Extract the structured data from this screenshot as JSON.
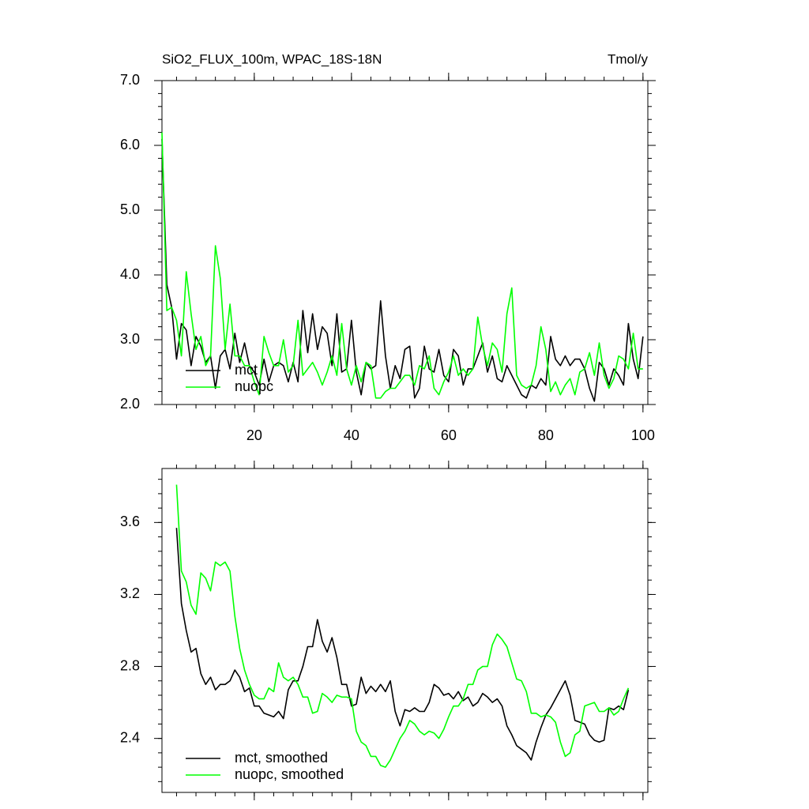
{
  "chart_data": [
    {
      "type": "line",
      "title": "SiO2_FLUX_100m, WPAC_18S-18N",
      "units_label": "Tmol/y",
      "x": [
        1,
        2,
        3,
        4,
        5,
        6,
        7,
        8,
        9,
        10,
        11,
        12,
        13,
        14,
        15,
        16,
        17,
        18,
        19,
        20,
        21,
        22,
        23,
        24,
        25,
        26,
        27,
        28,
        29,
        30,
        31,
        32,
        33,
        34,
        35,
        36,
        37,
        38,
        39,
        40,
        41,
        42,
        43,
        44,
        45,
        46,
        47,
        48,
        49,
        50,
        51,
        52,
        53,
        54,
        55,
        56,
        57,
        58,
        59,
        60,
        61,
        62,
        63,
        64,
        65,
        66,
        67,
        68,
        69,
        70,
        71,
        72,
        73,
        74,
        75,
        76,
        77,
        78,
        79,
        80,
        81,
        82,
        83,
        84,
        85,
        86,
        87,
        88,
        89,
        90,
        91,
        92,
        93,
        94,
        95,
        96,
        97,
        98,
        99,
        100
      ],
      "series": [
        {
          "name": "mct",
          "color": "#000000",
          "values": [
            6.1,
            3.85,
            3.5,
            2.7,
            3.25,
            3.15,
            2.6,
            3.05,
            2.9,
            2.65,
            2.75,
            2.25,
            2.75,
            2.85,
            2.55,
            3.1,
            2.65,
            2.95,
            2.6,
            2.5,
            2.3,
            2.7,
            2.35,
            2.6,
            2.65,
            2.6,
            2.35,
            2.65,
            2.35,
            3.45,
            2.8,
            3.4,
            2.85,
            3.2,
            3.1,
            2.6,
            3.4,
            2.5,
            2.55,
            3.3,
            2.5,
            2.15,
            2.65,
            2.55,
            2.6,
            3.6,
            2.75,
            2.25,
            2.6,
            2.4,
            2.85,
            2.9,
            2.1,
            2.25,
            2.9,
            2.55,
            2.5,
            2.85,
            2.45,
            2.35,
            2.85,
            2.75,
            2.3,
            2.55,
            2.55,
            2.75,
            2.95,
            2.5,
            2.75,
            2.4,
            2.35,
            2.6,
            2.45,
            2.3,
            2.15,
            2.1,
            2.3,
            2.25,
            2.4,
            2.3,
            3.05,
            2.7,
            2.6,
            2.75,
            2.6,
            2.7,
            2.7,
            2.55,
            2.25,
            2.05,
            2.65,
            2.55,
            2.3,
            2.55,
            2.45,
            2.3,
            3.25,
            2.7,
            2.4,
            3.05
          ]
        },
        {
          "name": "nuopc",
          "color": "#00ff00",
          "values": [
            6.2,
            3.45,
            3.5,
            3.3,
            2.75,
            4.05,
            3.4,
            2.85,
            3.05,
            2.6,
            2.75,
            4.45,
            3.95,
            2.85,
            3.55,
            2.75,
            2.75,
            2.6,
            2.6,
            2.35,
            2.15,
            3.05,
            2.8,
            2.6,
            2.6,
            3.0,
            2.5,
            2.6,
            3.3,
            2.45,
            2.55,
            2.65,
            2.5,
            2.3,
            2.5,
            2.75,
            2.45,
            3.25,
            2.55,
            2.3,
            2.6,
            2.35,
            2.65,
            2.6,
            2.1,
            2.1,
            2.2,
            2.25,
            2.25,
            2.35,
            2.45,
            2.45,
            2.3,
            2.6,
            2.55,
            2.75,
            2.25,
            2.15,
            2.35,
            2.5,
            2.75,
            2.45,
            2.55,
            2.45,
            2.55,
            3.35,
            2.9,
            2.6,
            2.95,
            2.85,
            2.5,
            3.4,
            3.8,
            2.45,
            2.3,
            2.25,
            2.3,
            2.6,
            3.2,
            2.85,
            2.2,
            2.35,
            2.15,
            2.3,
            2.4,
            2.15,
            2.5,
            2.55,
            2.8,
            2.45,
            2.95,
            2.45,
            2.25,
            2.4,
            2.75,
            2.7,
            2.55,
            3.1,
            2.55,
            2.55
          ]
        }
      ],
      "xlim": [
        1,
        101
      ],
      "xticks": [
        20,
        40,
        60,
        80,
        100
      ],
      "show_xtick_labels": true,
      "ylim": [
        2,
        7
      ],
      "yticks": [
        {
          "value": 2,
          "label": "2.0"
        },
        {
          "value": 3,
          "label": "3.0"
        },
        {
          "value": 4,
          "label": "4.0"
        },
        {
          "value": 5,
          "label": "5.0"
        },
        {
          "value": 6,
          "label": "6.0"
        },
        {
          "value": 7,
          "label": "7.0"
        }
      ],
      "minor_ticks": 5,
      "legend": "lower left"
    },
    {
      "type": "line",
      "x": [
        4,
        5,
        6,
        7,
        8,
        9,
        10,
        11,
        12,
        13,
        14,
        15,
        16,
        17,
        18,
        19,
        20,
        21,
        22,
        23,
        24,
        25,
        26,
        27,
        28,
        29,
        30,
        31,
        32,
        33,
        34,
        35,
        36,
        37,
        38,
        39,
        40,
        41,
        42,
        43,
        44,
        45,
        46,
        47,
        48,
        49,
        50,
        51,
        52,
        53,
        54,
        55,
        56,
        57,
        58,
        59,
        60,
        61,
        62,
        63,
        64,
        65,
        66,
        67,
        68,
        69,
        70,
        71,
        72,
        73,
        74,
        75,
        76,
        77,
        78,
        79,
        80,
        81,
        82,
        83,
        84,
        85,
        86,
        87,
        88,
        89,
        90,
        91,
        92,
        93,
        94,
        95,
        96,
        97
      ],
      "series": [
        {
          "name": "mct, smoothed",
          "color": "#000000",
          "values": [
            3.57,
            3.15,
            3.0,
            2.88,
            2.9,
            2.76,
            2.7,
            2.74,
            2.67,
            2.7,
            2.7,
            2.72,
            2.78,
            2.74,
            2.66,
            2.68,
            2.58,
            2.58,
            2.54,
            2.53,
            2.52,
            2.55,
            2.51,
            2.67,
            2.72,
            2.72,
            2.8,
            2.91,
            2.91,
            3.06,
            2.94,
            2.88,
            2.96,
            2.85,
            2.7,
            2.7,
            2.58,
            2.59,
            2.74,
            2.65,
            2.69,
            2.66,
            2.7,
            2.66,
            2.72,
            2.55,
            2.47,
            2.56,
            2.55,
            2.57,
            2.55,
            2.55,
            2.6,
            2.7,
            2.68,
            2.64,
            2.65,
            2.62,
            2.66,
            2.61,
            2.63,
            2.58,
            2.6,
            2.65,
            2.63,
            2.6,
            2.62,
            2.58,
            2.47,
            2.42,
            2.36,
            2.34,
            2.32,
            2.28,
            2.38,
            2.46,
            2.53,
            2.57,
            2.62,
            2.67,
            2.72,
            2.64,
            2.5,
            2.49,
            2.48,
            2.42,
            2.39,
            2.38,
            2.39,
            2.57,
            2.56,
            2.58,
            2.56,
            2.67
          ]
        },
        {
          "name": "nuopc, smoothed",
          "color": "#00ff00",
          "values": [
            3.81,
            3.33,
            3.27,
            3.14,
            3.09,
            3.32,
            3.29,
            3.22,
            3.38,
            3.36,
            3.38,
            3.33,
            3.08,
            2.9,
            2.78,
            2.7,
            2.64,
            2.62,
            2.62,
            2.68,
            2.66,
            2.82,
            2.74,
            2.72,
            2.74,
            2.7,
            2.63,
            2.63,
            2.54,
            2.55,
            2.65,
            2.63,
            2.6,
            2.64,
            2.63,
            2.63,
            2.62,
            2.44,
            2.38,
            2.36,
            2.3,
            2.3,
            2.25,
            2.24,
            2.28,
            2.34,
            2.4,
            2.44,
            2.5,
            2.48,
            2.44,
            2.42,
            2.44,
            2.43,
            2.4,
            2.45,
            2.52,
            2.58,
            2.58,
            2.62,
            2.7,
            2.7,
            2.78,
            2.8,
            2.8,
            2.92,
            2.98,
            2.95,
            2.91,
            2.82,
            2.73,
            2.72,
            2.66,
            2.54,
            2.54,
            2.52,
            2.53,
            2.52,
            2.49,
            2.38,
            2.3,
            2.32,
            2.42,
            2.44,
            2.58,
            2.59,
            2.6,
            2.55,
            2.55,
            2.57,
            2.53,
            2.55,
            2.62,
            2.68
          ]
        }
      ],
      "xlim": [
        1,
        101
      ],
      "xticks": [
        20,
        40,
        60,
        80,
        100
      ],
      "show_xtick_labels": false,
      "ylim": [
        2.1,
        3.9
      ],
      "yticks": [
        2.4,
        2.8,
        3.2,
        3.6
      ],
      "minor_ticks": 5,
      "legend": "lower left"
    }
  ]
}
